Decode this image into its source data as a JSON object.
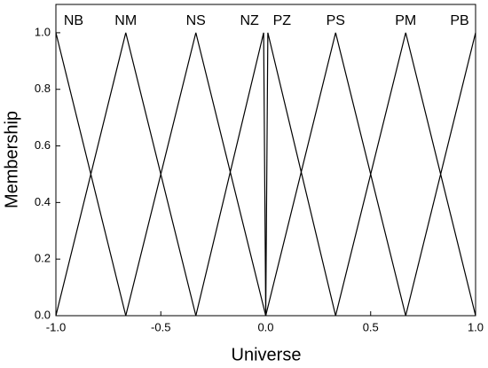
{
  "chart_data": {
    "type": "line",
    "xlabel": "Universe",
    "ylabel": "Membership",
    "xlim": [
      -1,
      1
    ],
    "ylim": [
      0,
      1.1
    ],
    "xticks": [
      {
        "value": -1,
        "label": "-1.0"
      },
      -0.5,
      {
        "value": 0,
        "label": "0.0"
      },
      0.5,
      {
        "value": 1,
        "label": "1.0"
      }
    ],
    "yticks": [
      {
        "value": 0,
        "label": "0.0"
      },
      0.2,
      0.4,
      0.6,
      0.8,
      {
        "value": 1,
        "label": "1.0"
      }
    ],
    "series": [
      {
        "name": "NB",
        "color": "#000000",
        "x": [
          -1,
          -0.667
        ],
        "values": [
          1,
          0
        ]
      },
      {
        "name": "NM",
        "color": "#000000",
        "x": [
          -1,
          -0.667,
          -0.333
        ],
        "values": [
          0,
          1,
          0
        ]
      },
      {
        "name": "NS",
        "color": "#000000",
        "x": [
          -0.667,
          -0.333,
          0
        ],
        "values": [
          0,
          1,
          0
        ]
      },
      {
        "name": "NZ",
        "color": "#000000",
        "x": [
          -0.333,
          -0.01,
          0
        ],
        "values": [
          0,
          1,
          0
        ]
      },
      {
        "name": "PZ",
        "color": "#000000",
        "x": [
          0,
          0.01,
          0.333
        ],
        "values": [
          0,
          1,
          0
        ]
      },
      {
        "name": "PS",
        "color": "#000000",
        "x": [
          0,
          0.333,
          0.667
        ],
        "values": [
          0,
          1,
          0
        ]
      },
      {
        "name": "PM",
        "color": "#000000",
        "x": [
          0.333,
          0.667,
          1
        ],
        "values": [
          0,
          1,
          0
        ]
      },
      {
        "name": "PB",
        "color": "#000000",
        "x": [
          0.667,
          1
        ],
        "values": [
          0,
          1
        ]
      }
    ]
  }
}
